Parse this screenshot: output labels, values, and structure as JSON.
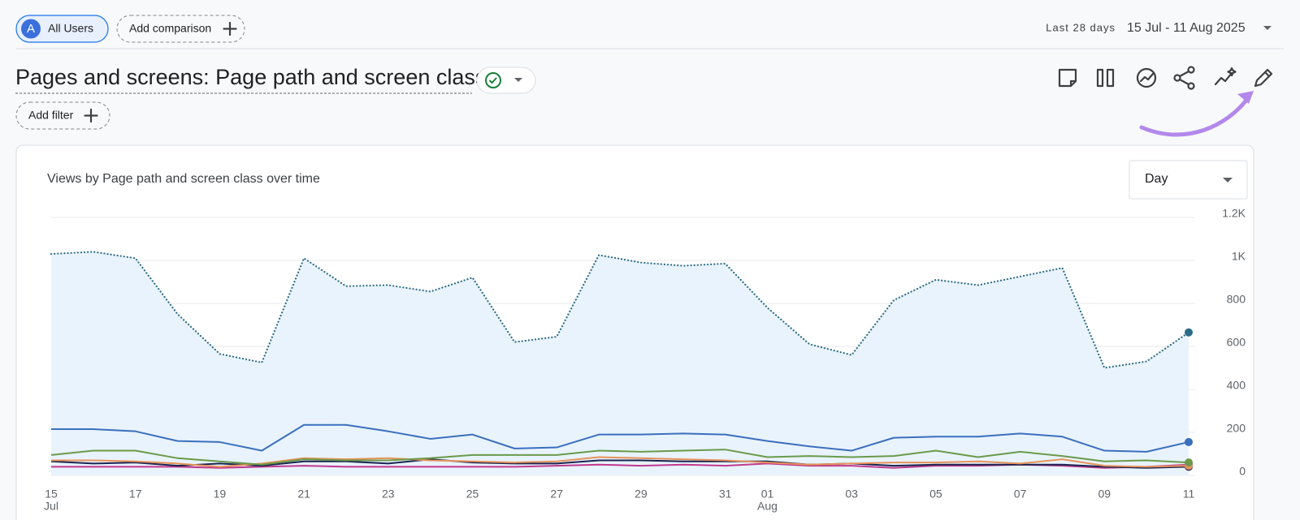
{
  "header": {
    "avatar": "A",
    "segment": "All Users",
    "add_comparison": "Add comparison",
    "date_range_label": "Last 28 days",
    "date_range": "15 Jul - 11 Aug 2025"
  },
  "title": "Pages and screens: Page path and screen class",
  "add_filter": "Add filter",
  "granularity": "Day",
  "chart_data": {
    "type": "line",
    "title": "Views by Page path and screen class over time",
    "categories": [
      "15",
      null,
      "17",
      null,
      "19",
      null,
      "21",
      null,
      "23",
      null,
      "25",
      null,
      "27",
      null,
      "29",
      null,
      "31",
      "01",
      null,
      "03",
      null,
      "05",
      null,
      "07",
      null,
      "09",
      null,
      "11"
    ],
    "category_months": [
      "Jul",
      null,
      null,
      null,
      null,
      null,
      null,
      null,
      null,
      null,
      null,
      null,
      null,
      null,
      null,
      null,
      null,
      "Aug",
      null,
      null,
      null,
      null,
      null,
      null,
      null,
      null,
      null,
      null
    ],
    "ylim": [
      0,
      1200
    ],
    "yticks": [
      0,
      200,
      400,
      600,
      800,
      {
        "value": 1000,
        "label": "1K"
      },
      {
        "value": 1200,
        "label": "1.2K"
      }
    ],
    "grid": true,
    "y_axis_side": "right",
    "series": [
      {
        "color": "#2c6b86",
        "style": "dotted",
        "area": true,
        "values": [
          1030,
          1040,
          1010,
          750,
          565,
          525,
          1010,
          880,
          885,
          855,
          920,
          620,
          645,
          1025,
          990,
          975,
          985,
          780,
          610,
          560,
          815,
          910,
          885,
          925,
          965,
          500,
          530,
          665
        ]
      },
      {
        "color": "#3b6fbd",
        "style": "solid",
        "values": [
          215,
          215,
          205,
          160,
          155,
          115,
          235,
          235,
          205,
          170,
          190,
          125,
          130,
          190,
          190,
          195,
          190,
          160,
          135,
          115,
          175,
          180,
          180,
          195,
          180,
          115,
          110,
          155
        ]
      },
      {
        "color": "#6a9a4a",
        "style": "solid",
        "values": [
          95,
          115,
          115,
          80,
          65,
          50,
          75,
          70,
          70,
          80,
          95,
          95,
          95,
          115,
          110,
          115,
          120,
          85,
          90,
          85,
          90,
          115,
          85,
          110,
          90,
          65,
          70,
          60
        ]
      },
      {
        "color": "#e8935a",
        "style": "solid",
        "values": [
          70,
          70,
          65,
          55,
          40,
          55,
          80,
          75,
          80,
          70,
          65,
          60,
          65,
          85,
          80,
          75,
          70,
          60,
          50,
          55,
          60,
          60,
          65,
          55,
          75,
          45,
          40,
          45
        ]
      },
      {
        "color": "#1a2450",
        "style": "solid",
        "values": [
          65,
          55,
          60,
          45,
          55,
          45,
          65,
          65,
          55,
          75,
          60,
          55,
          55,
          70,
          70,
          65,
          65,
          65,
          50,
          55,
          45,
          50,
          50,
          50,
          50,
          40,
          35,
          40
        ]
      },
      {
        "color": "#c2398f",
        "style": "solid",
        "values": [
          40,
          40,
          40,
          40,
          35,
          40,
          45,
          40,
          40,
          40,
          40,
          40,
          45,
          50,
          45,
          50,
          45,
          55,
          45,
          45,
          35,
          45,
          45,
          50,
          45,
          35,
          40,
          50
        ]
      }
    ]
  }
}
